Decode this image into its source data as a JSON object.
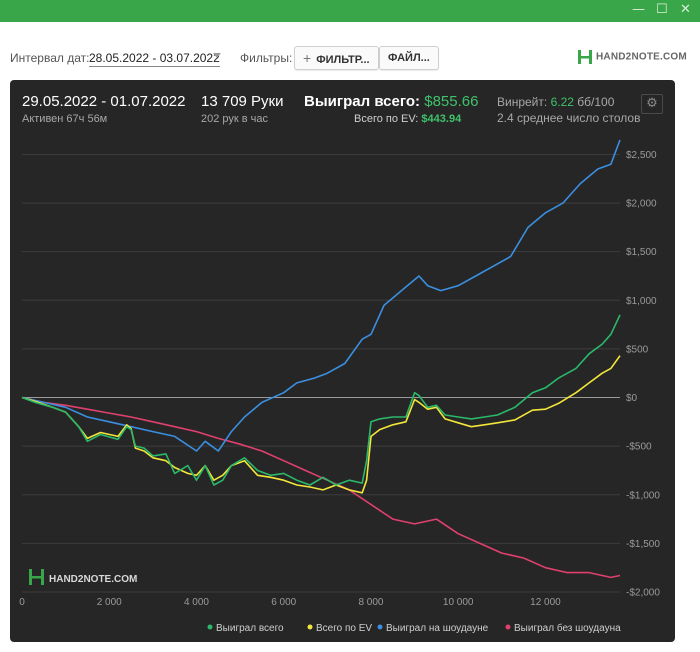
{
  "window": {
    "minimize_glyph": "—",
    "maximize_glyph": "☐",
    "close_glyph": "✕"
  },
  "filterbar": {
    "date_label": "Интервал дат:",
    "date_value": "28.05.2022 - 03.07.2022",
    "filters_label": "Фильтры:",
    "filter_button": "ФИЛЬТР...",
    "file_button": "ФАЙЛ...",
    "logo_text": "HAND2NOTE.COM"
  },
  "stats": {
    "range": "29.05.2022 - 01.07.2022",
    "active": "Активен 67ч 56м",
    "hands": "13 709 Руки",
    "per_hour": "202 рук в час",
    "won_label": "Выиграл всего:",
    "won_value": "$855.66",
    "ev_label": "Всего по EV:",
    "ev_value": "$443.94",
    "winrate_label": "Винрейт:",
    "winrate_value": "6.22",
    "winrate_unit": "бб/100",
    "tables": "2.4 среднее число столов"
  },
  "watermark": "HAND2NOTE.COM",
  "colors": {
    "won": "#2ab86a",
    "ev": "#f2e63a",
    "showdown": "#3a8fe0",
    "nonshowdown": "#e0406e",
    "panel": "#262626",
    "accent": "#3aa64a"
  },
  "chart_data": {
    "type": "line",
    "x_ticks": [
      0,
      2000,
      4000,
      6000,
      8000,
      10000,
      12000
    ],
    "x_tick_labels": [
      "0",
      "2 000",
      "4 000",
      "6 000",
      "8 000",
      "10 000",
      "12 000"
    ],
    "y_ticks": [
      -2000,
      -1500,
      -1000,
      -500,
      0,
      500,
      1000,
      1500,
      2000,
      2500
    ],
    "y_tick_labels": [
      "-$2,000",
      "-$1,500",
      "-$1,000",
      "-$500",
      "$0",
      "$500",
      "$1,000",
      "$1,500",
      "$2,000",
      "$2,500"
    ],
    "xlim": [
      0,
      13709
    ],
    "ylim": [
      -2000,
      2700
    ],
    "grid": "horizontal",
    "legend_position": "bottom-right",
    "series": [
      {
        "name": "Выиграл всего",
        "color": "#2ab86a",
        "points": [
          [
            0,
            0
          ],
          [
            300,
            -50
          ],
          [
            700,
            -100
          ],
          [
            1000,
            -150
          ],
          [
            1300,
            -300
          ],
          [
            1500,
            -450
          ],
          [
            1800,
            -380
          ],
          [
            2200,
            -430
          ],
          [
            2400,
            -300
          ],
          [
            2500,
            -330
          ],
          [
            2600,
            -500
          ],
          [
            2800,
            -520
          ],
          [
            3000,
            -600
          ],
          [
            3300,
            -580
          ],
          [
            3500,
            -780
          ],
          [
            3800,
            -700
          ],
          [
            4000,
            -850
          ],
          [
            4200,
            -700
          ],
          [
            4400,
            -900
          ],
          [
            4600,
            -850
          ],
          [
            4800,
            -700
          ],
          [
            5100,
            -620
          ],
          [
            5400,
            -750
          ],
          [
            5700,
            -800
          ],
          [
            6000,
            -780
          ],
          [
            6300,
            -850
          ],
          [
            6600,
            -900
          ],
          [
            6900,
            -820
          ],
          [
            7200,
            -900
          ],
          [
            7500,
            -850
          ],
          [
            7800,
            -880
          ],
          [
            7900,
            -650
          ],
          [
            8000,
            -250
          ],
          [
            8200,
            -220
          ],
          [
            8500,
            -200
          ],
          [
            8800,
            -200
          ],
          [
            9000,
            50
          ],
          [
            9100,
            20
          ],
          [
            9300,
            -100
          ],
          [
            9500,
            -80
          ],
          [
            9700,
            -180
          ],
          [
            10000,
            -200
          ],
          [
            10300,
            -220
          ],
          [
            10600,
            -200
          ],
          [
            10900,
            -180
          ],
          [
            11300,
            -100
          ],
          [
            11700,
            50
          ],
          [
            12000,
            100
          ],
          [
            12300,
            200
          ],
          [
            12700,
            300
          ],
          [
            13000,
            450
          ],
          [
            13300,
            550
          ],
          [
            13500,
            650
          ],
          [
            13709,
            850
          ]
        ]
      },
      {
        "name": "Всего по EV",
        "color": "#f2e63a",
        "points": [
          [
            0,
            0
          ],
          [
            300,
            -40
          ],
          [
            700,
            -100
          ],
          [
            1000,
            -150
          ],
          [
            1300,
            -300
          ],
          [
            1500,
            -420
          ],
          [
            1800,
            -360
          ],
          [
            2200,
            -400
          ],
          [
            2400,
            -280
          ],
          [
            2500,
            -320
          ],
          [
            2600,
            -520
          ],
          [
            2800,
            -550
          ],
          [
            3000,
            -620
          ],
          [
            3300,
            -650
          ],
          [
            3500,
            -720
          ],
          [
            3800,
            -780
          ],
          [
            4000,
            -800
          ],
          [
            4200,
            -700
          ],
          [
            4400,
            -850
          ],
          [
            4600,
            -800
          ],
          [
            4800,
            -700
          ],
          [
            5100,
            -650
          ],
          [
            5400,
            -800
          ],
          [
            5700,
            -820
          ],
          [
            6000,
            -850
          ],
          [
            6300,
            -900
          ],
          [
            6600,
            -920
          ],
          [
            6900,
            -950
          ],
          [
            7200,
            -900
          ],
          [
            7500,
            -950
          ],
          [
            7800,
            -980
          ],
          [
            7900,
            -850
          ],
          [
            8000,
            -400
          ],
          [
            8200,
            -330
          ],
          [
            8500,
            -280
          ],
          [
            8800,
            -250
          ],
          [
            9000,
            -20
          ],
          [
            9100,
            -50
          ],
          [
            9300,
            -120
          ],
          [
            9500,
            -100
          ],
          [
            9700,
            -220
          ],
          [
            10000,
            -260
          ],
          [
            10300,
            -300
          ],
          [
            10600,
            -280
          ],
          [
            10900,
            -260
          ],
          [
            11300,
            -230
          ],
          [
            11700,
            -130
          ],
          [
            12000,
            -120
          ],
          [
            12300,
            -60
          ],
          [
            12700,
            50
          ],
          [
            13000,
            150
          ],
          [
            13300,
            250
          ],
          [
            13500,
            300
          ],
          [
            13709,
            430
          ]
        ]
      },
      {
        "name": "Выиграл на шоудауне",
        "color": "#3a8fe0",
        "points": [
          [
            0,
            0
          ],
          [
            500,
            -50
          ],
          [
            1000,
            -100
          ],
          [
            1500,
            -200
          ],
          [
            2000,
            -250
          ],
          [
            2500,
            -300
          ],
          [
            3000,
            -350
          ],
          [
            3500,
            -400
          ],
          [
            4000,
            -550
          ],
          [
            4200,
            -450
          ],
          [
            4500,
            -550
          ],
          [
            4800,
            -350
          ],
          [
            5100,
            -200
          ],
          [
            5500,
            -50
          ],
          [
            6000,
            50
          ],
          [
            6300,
            150
          ],
          [
            6700,
            200
          ],
          [
            7000,
            250
          ],
          [
            7400,
            350
          ],
          [
            7800,
            600
          ],
          [
            8000,
            650
          ],
          [
            8300,
            950
          ],
          [
            8700,
            1100
          ],
          [
            9100,
            1250
          ],
          [
            9300,
            1150
          ],
          [
            9600,
            1100
          ],
          [
            10000,
            1150
          ],
          [
            10400,
            1250
          ],
          [
            10800,
            1350
          ],
          [
            11200,
            1450
          ],
          [
            11600,
            1750
          ],
          [
            12000,
            1900
          ],
          [
            12400,
            2000
          ],
          [
            12800,
            2200
          ],
          [
            13200,
            2350
          ],
          [
            13500,
            2400
          ],
          [
            13709,
            2650
          ]
        ]
      },
      {
        "name": "Выиграл без шоудауна",
        "color": "#e0406e",
        "points": [
          [
            0,
            0
          ],
          [
            500,
            -50
          ],
          [
            1000,
            -80
          ],
          [
            1500,
            -120
          ],
          [
            2000,
            -160
          ],
          [
            2500,
            -200
          ],
          [
            3000,
            -250
          ],
          [
            3500,
            -300
          ],
          [
            4000,
            -350
          ],
          [
            4500,
            -420
          ],
          [
            5000,
            -480
          ],
          [
            5500,
            -550
          ],
          [
            6000,
            -650
          ],
          [
            6500,
            -750
          ],
          [
            7000,
            -850
          ],
          [
            7500,
            -950
          ],
          [
            8000,
            -1100
          ],
          [
            8500,
            -1250
          ],
          [
            9000,
            -1300
          ],
          [
            9500,
            -1250
          ],
          [
            10000,
            -1400
          ],
          [
            10500,
            -1500
          ],
          [
            11000,
            -1600
          ],
          [
            11500,
            -1650
          ],
          [
            12000,
            -1750
          ],
          [
            12500,
            -1800
          ],
          [
            13000,
            -1800
          ],
          [
            13500,
            -1850
          ],
          [
            13709,
            -1830
          ]
        ]
      }
    ]
  }
}
